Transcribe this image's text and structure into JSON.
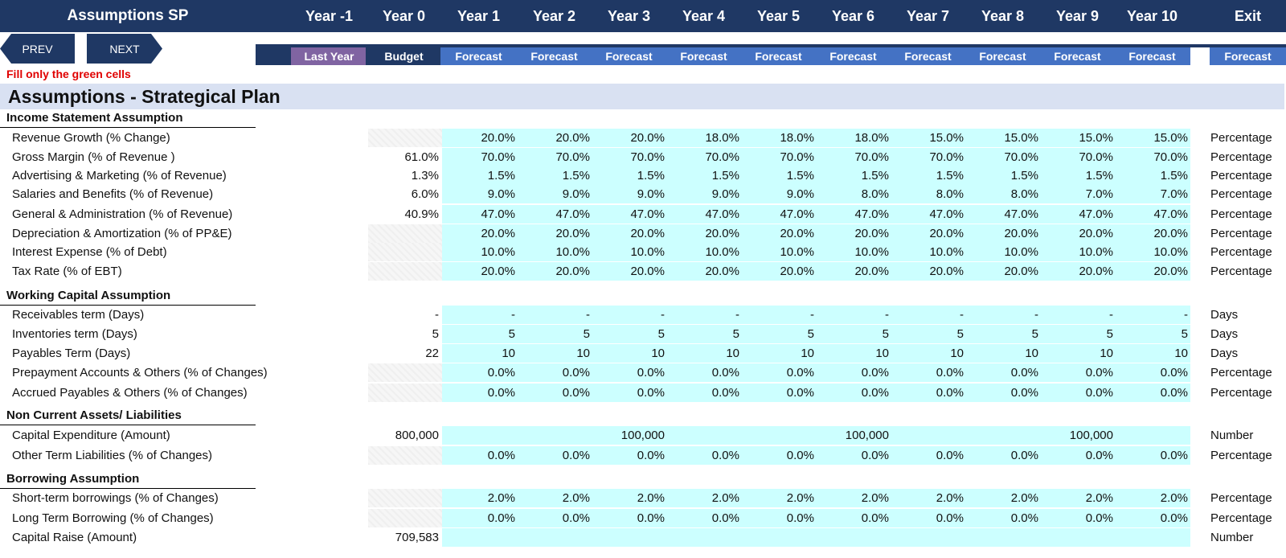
{
  "header": {
    "title": "Assumptions SP",
    "years": [
      "Year -1",
      "Year 0",
      "Year 1",
      "Year 2",
      "Year 3",
      "Year 4",
      "Year 5",
      "Year 6",
      "Year 7",
      "Year 8",
      "Year 9",
      "Year 10"
    ],
    "exit_label": "Exit",
    "phases": [
      "Last Year",
      "Budget",
      "Forecast",
      "Forecast",
      "Forecast",
      "Forecast",
      "Forecast",
      "Forecast",
      "Forecast",
      "Forecast",
      "Forecast",
      "Forecast",
      "Forecast"
    ]
  },
  "nav": {
    "prev_label": "PREV",
    "next_label": "NEXT"
  },
  "note": "Fill only the green cells",
  "section_title": "Assumptions - Strategical Plan",
  "groups": [
    {
      "title": "Income Statement Assumption",
      "rows": [
        {
          "label": "Revenue Growth (% Change)",
          "base": "",
          "values": [
            "20.0%",
            "20.0%",
            "20.0%",
            "18.0%",
            "18.0%",
            "18.0%",
            "15.0%",
            "15.0%",
            "15.0%",
            "15.0%"
          ],
          "unit": "Percentage"
        },
        {
          "label": "Gross Margin (% of Revenue )",
          "base": "61.0%",
          "values": [
            "70.0%",
            "70.0%",
            "70.0%",
            "70.0%",
            "70.0%",
            "70.0%",
            "70.0%",
            "70.0%",
            "70.0%",
            "70.0%"
          ],
          "unit": "Percentage"
        },
        {
          "label": "Advertising & Marketing (% of Revenue)",
          "base": "1.3%",
          "values": [
            "1.5%",
            "1.5%",
            "1.5%",
            "1.5%",
            "1.5%",
            "1.5%",
            "1.5%",
            "1.5%",
            "1.5%",
            "1.5%"
          ],
          "unit": "Percentage"
        },
        {
          "label": "Salaries and Benefits (% of Revenue)",
          "base": "6.0%",
          "values": [
            "9.0%",
            "9.0%",
            "9.0%",
            "9.0%",
            "9.0%",
            "8.0%",
            "8.0%",
            "8.0%",
            "7.0%",
            "7.0%"
          ],
          "unit": "Percentage"
        },
        {
          "label": "General & Administration (% of Revenue)",
          "base": "40.9%",
          "values": [
            "47.0%",
            "47.0%",
            "47.0%",
            "47.0%",
            "47.0%",
            "47.0%",
            "47.0%",
            "47.0%",
            "47.0%",
            "47.0%"
          ],
          "unit": "Percentage"
        },
        {
          "label": "Depreciation & Amortization (% of PP&E)",
          "base": "",
          "values": [
            "20.0%",
            "20.0%",
            "20.0%",
            "20.0%",
            "20.0%",
            "20.0%",
            "20.0%",
            "20.0%",
            "20.0%",
            "20.0%"
          ],
          "unit": "Percentage"
        },
        {
          "label": "Interest Expense (% of Debt)",
          "base": "",
          "values": [
            "10.0%",
            "10.0%",
            "10.0%",
            "10.0%",
            "10.0%",
            "10.0%",
            "10.0%",
            "10.0%",
            "10.0%",
            "10.0%"
          ],
          "unit": "Percentage"
        },
        {
          "label": "Tax Rate (% of EBT)",
          "base": "",
          "values": [
            "20.0%",
            "20.0%",
            "20.0%",
            "20.0%",
            "20.0%",
            "20.0%",
            "20.0%",
            "20.0%",
            "20.0%",
            "20.0%"
          ],
          "unit": "Percentage"
        }
      ]
    },
    {
      "title": "Working Capital Assumption",
      "rows": [
        {
          "label": "Receivables term  (Days)",
          "base": "-",
          "values": [
            "-",
            "-",
            "-",
            "-",
            "-",
            "-",
            "-",
            "-",
            "-",
            "-"
          ],
          "unit": "Days"
        },
        {
          "label": "Inventories term  (Days)",
          "base": "5",
          "values": [
            "5",
            "5",
            "5",
            "5",
            "5",
            "5",
            "5",
            "5",
            "5",
            "5"
          ],
          "unit": "Days"
        },
        {
          "label": "Payables Term (Days)",
          "base": "22",
          "values": [
            "10",
            "10",
            "10",
            "10",
            "10",
            "10",
            "10",
            "10",
            "10",
            "10"
          ],
          "unit": "Days"
        },
        {
          "label": "Prepayment Accounts & Others (% of Changes)",
          "base": "",
          "values": [
            "0.0%",
            "0.0%",
            "0.0%",
            "0.0%",
            "0.0%",
            "0.0%",
            "0.0%",
            "0.0%",
            "0.0%",
            "0.0%"
          ],
          "unit": "Percentage"
        },
        {
          "label": "Accrued Payables & Others (% of Changes)",
          "base": "",
          "values": [
            "0.0%",
            "0.0%",
            "0.0%",
            "0.0%",
            "0.0%",
            "0.0%",
            "0.0%",
            "0.0%",
            "0.0%",
            "0.0%"
          ],
          "unit": "Percentage"
        }
      ]
    },
    {
      "title": "Non Current Assets/ Liabilities",
      "rows": [
        {
          "label": "Capital Expenditure (Amount)",
          "base": "800,000",
          "values": [
            "",
            "",
            "100,000",
            "",
            "",
            "100,000",
            "",
            "",
            "100,000",
            ""
          ],
          "unit": "Number"
        },
        {
          "label": "Other Term Liabilities  (% of Changes)",
          "base": "",
          "values": [
            "0.0%",
            "0.0%",
            "0.0%",
            "0.0%",
            "0.0%",
            "0.0%",
            "0.0%",
            "0.0%",
            "0.0%",
            "0.0%"
          ],
          "unit": "Percentage"
        }
      ]
    },
    {
      "title": "Borrowing Assumption",
      "rows": [
        {
          "label": "Short-term borrowings (% of Changes)",
          "base": "",
          "values": [
            "2.0%",
            "2.0%",
            "2.0%",
            "2.0%",
            "2.0%",
            "2.0%",
            "2.0%",
            "2.0%",
            "2.0%",
            "2.0%"
          ],
          "unit": "Percentage"
        },
        {
          "label": "Long Term Borrowing (% of Changes)",
          "base": "",
          "values": [
            "0.0%",
            "0.0%",
            "0.0%",
            "0.0%",
            "0.0%",
            "0.0%",
            "0.0%",
            "0.0%",
            "0.0%",
            "0.0%"
          ],
          "unit": "Percentage"
        },
        {
          "label": "Capital Raise (Amount)",
          "base": "709,583",
          "values": [
            "",
            "",
            "",
            "",
            "",
            "",
            "",
            "",
            "",
            ""
          ],
          "unit": "Number"
        }
      ]
    }
  ],
  "colors": {
    "header_navy": "#1f3864",
    "forecast_blue": "#4472c4",
    "last_year_purple": "#8064a2",
    "input_cell": "#ccffff",
    "banner": "#d9e1f2",
    "note_red": "#e00000"
  }
}
